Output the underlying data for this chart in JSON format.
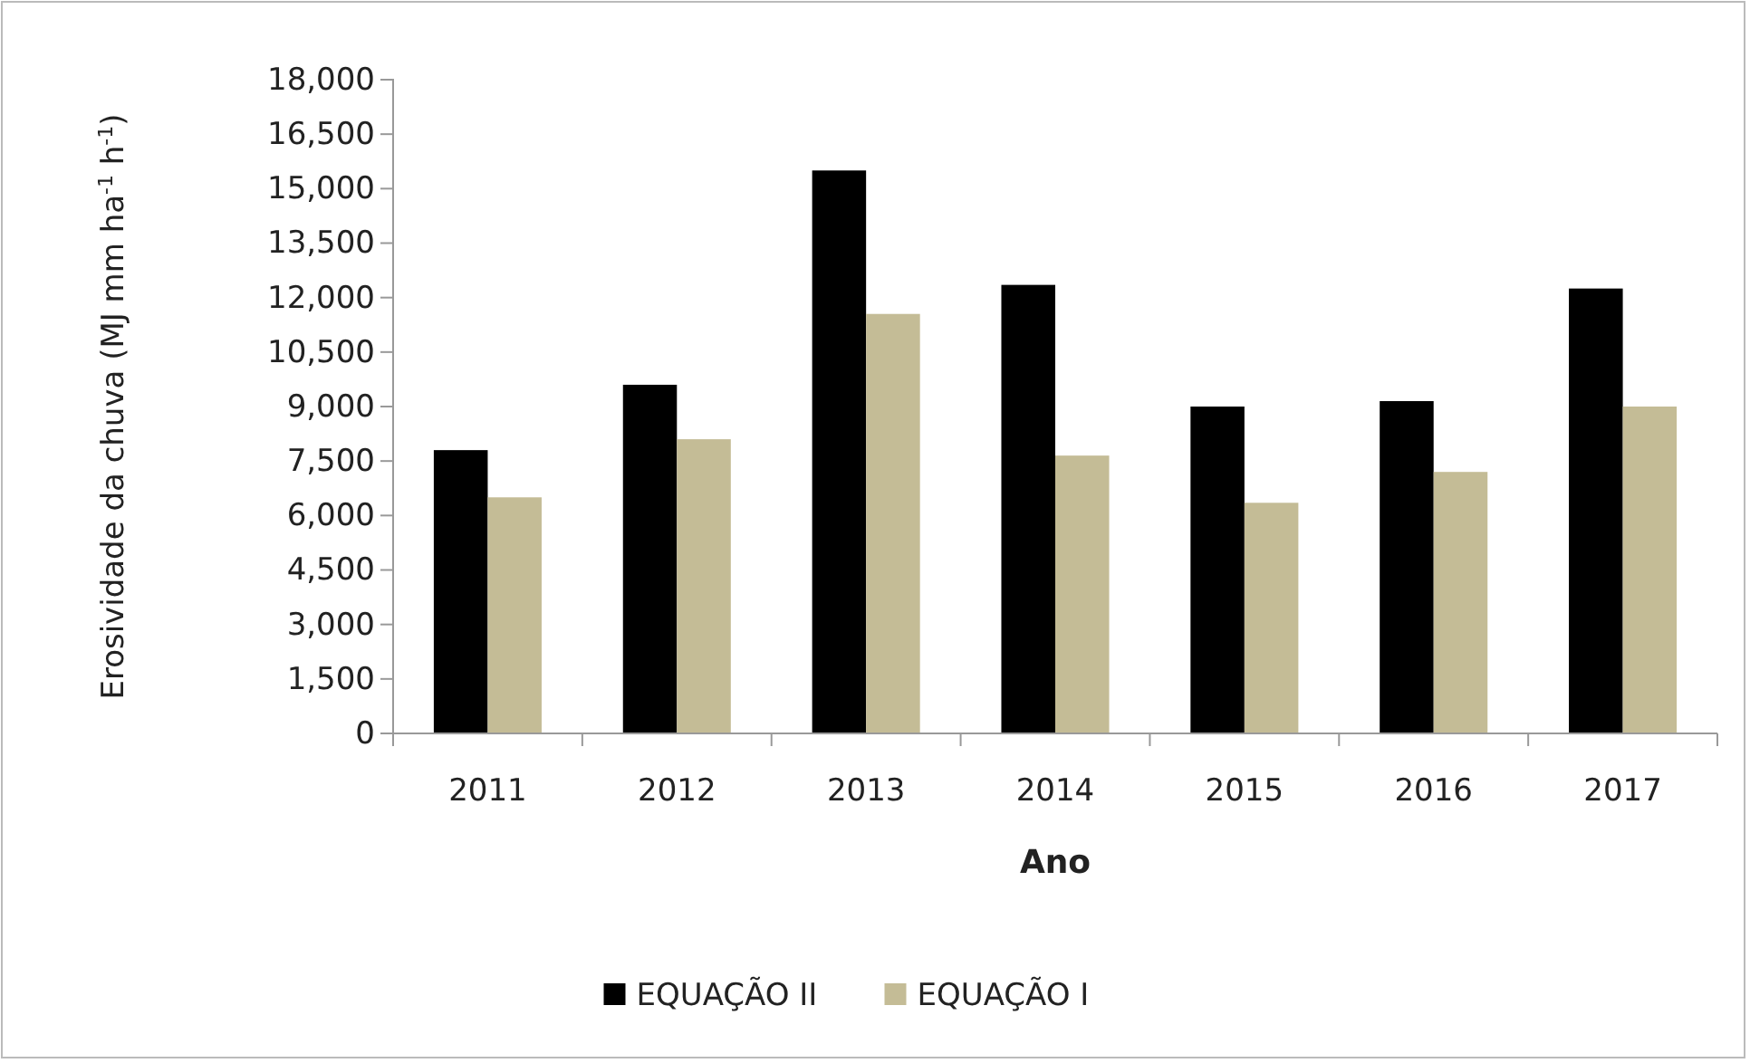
{
  "chart_data": {
    "type": "bar",
    "xlabel": "Ano",
    "ylabel": "Erosividade da chuva (MJ mm ha$^{-1}$ h$^{-1}$)",
    "categories": [
      "2011",
      "2012",
      "2013",
      "2014",
      "2015",
      "2016",
      "2017"
    ],
    "series": [
      {
        "name": "EQUAÇÃO II",
        "color": "#000000",
        "values": [
          7800,
          9600,
          15500,
          12350,
          9000,
          9150,
          12250
        ]
      },
      {
        "name": "EQUAÇÃO I",
        "color": "#c4bc96",
        "values": [
          6500,
          8100,
          11550,
          7650,
          6350,
          7200,
          9000
        ]
      }
    ],
    "ylim": [
      0,
      18000
    ],
    "yticks": [
      {
        "value": 0,
        "label": "0"
      },
      {
        "value": 1500,
        "label": "1,500"
      },
      {
        "value": 3000,
        "label": "3,000"
      },
      {
        "value": 4500,
        "label": "4,500"
      },
      {
        "value": 6000,
        "label": "6,000"
      },
      {
        "value": 7500,
        "label": "7,500"
      },
      {
        "value": 9000,
        "label": "9,000"
      },
      {
        "value": 10500,
        "label": "10,500"
      },
      {
        "value": 12000,
        "label": "12,000"
      },
      {
        "value": 13500,
        "label": "13,500"
      },
      {
        "value": 15000,
        "label": "15,000"
      },
      {
        "value": 16500,
        "label": "16,500"
      },
      {
        "value": 18000,
        "label": "18,000"
      }
    ],
    "legend": "bottom"
  }
}
